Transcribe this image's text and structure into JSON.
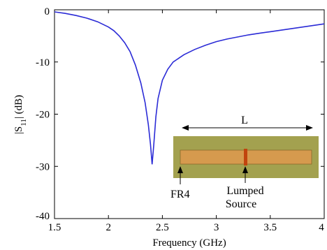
{
  "chart_data": {
    "type": "line",
    "xlabel": "Frequency (GHz)",
    "ylabel": "|S11| (dB)",
    "xlim": [
      1.5,
      4
    ],
    "ylim": [
      -40,
      0
    ],
    "xticks": [
      "1.5",
      "2",
      "2.5",
      "3",
      "3.5",
      "4"
    ],
    "yticks": [
      "0",
      "-10",
      "-20",
      "-30",
      "-40"
    ],
    "grid": false,
    "series": [
      {
        "color": "#2b2bd6",
        "x": [
          1.5,
          1.6,
          1.7,
          1.8,
          1.9,
          2.0,
          2.05,
          2.1,
          2.15,
          2.2,
          2.25,
          2.3,
          2.34,
          2.37,
          2.39,
          2.405,
          2.42,
          2.44,
          2.46,
          2.5,
          2.55,
          2.6,
          2.7,
          2.8,
          2.9,
          3.0,
          3.1,
          3.2,
          3.3,
          3.4,
          3.5,
          3.6,
          3.7,
          3.8,
          3.9,
          4.0
        ],
        "y": [
          -0.4,
          -0.7,
          -1.1,
          -1.6,
          -2.3,
          -3.3,
          -4.0,
          -5.0,
          -6.3,
          -8.0,
          -10.6,
          -14.0,
          -17.8,
          -22.0,
          -25.8,
          -29.6,
          -26.0,
          -20.5,
          -17.0,
          -13.5,
          -11.4,
          -10.0,
          -8.6,
          -7.6,
          -6.8,
          -6.1,
          -5.6,
          -5.2,
          -4.8,
          -4.5,
          -4.2,
          -3.9,
          -3.6,
          -3.3,
          -3.0,
          -2.7
        ]
      }
    ],
    "inset": {
      "dimension_label": "L",
      "substrate_label": "FR4",
      "source_label_line1": "Lumped",
      "source_label_line2": "Source",
      "colors": {
        "substrate": "#a3a14f",
        "strip": "#d69a4e",
        "source": "#c1440e"
      }
    }
  }
}
